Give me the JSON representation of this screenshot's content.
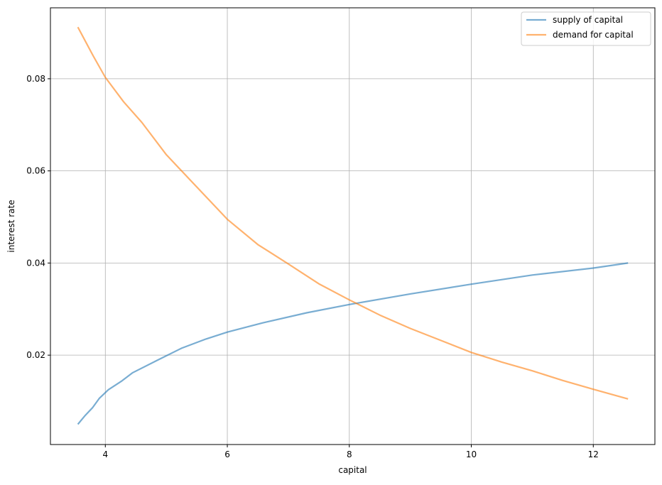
{
  "chart_data": {
    "type": "line",
    "title": "",
    "xlabel": "capital",
    "ylabel": "interest rate",
    "xlim": [
      3.1,
      13.01
    ],
    "ylim": [
      0.0006,
      0.0954
    ],
    "xticks": [
      4,
      6,
      8,
      10,
      12
    ],
    "xtick_labels": [
      "4",
      "6",
      "8",
      "10",
      "12"
    ],
    "yticks": [
      0.02,
      0.04,
      0.06,
      0.08
    ],
    "ytick_labels": [
      "0.02",
      "0.04",
      "0.06",
      "0.08"
    ],
    "grid": true,
    "legend_position": "top-right",
    "series": [
      {
        "name": "supply of capital",
        "color": "#1f77b4",
        "x": [
          3.55,
          3.67,
          3.79,
          3.9,
          4.05,
          4.26,
          4.45,
          4.84,
          5.25,
          5.65,
          6.0,
          6.58,
          7.3,
          8.0,
          9.0,
          10.0,
          11.0,
          12.0,
          12.57
        ],
        "y": [
          0.005,
          0.0069,
          0.0086,
          0.0106,
          0.0125,
          0.0143,
          0.0162,
          0.0188,
          0.0215,
          0.0235,
          0.025,
          0.027,
          0.0292,
          0.031,
          0.0333,
          0.0354,
          0.0374,
          0.0389,
          0.04
        ]
      },
      {
        "name": "demand for capital",
        "color": "#ff7f0e",
        "x": [
          3.55,
          3.8,
          4.0,
          4.3,
          4.6,
          5.0,
          5.5,
          6.0,
          6.5,
          7.0,
          7.5,
          8.0,
          8.5,
          9.0,
          9.5,
          10.0,
          10.5,
          11.0,
          11.5,
          12.0,
          12.57
        ],
        "y": [
          0.0912,
          0.085,
          0.0803,
          0.075,
          0.0705,
          0.0635,
          0.0565,
          0.0495,
          0.044,
          0.0398,
          0.0355,
          0.032,
          0.0287,
          0.0258,
          0.0232,
          0.0206,
          0.0185,
          0.0166,
          0.0145,
          0.0126,
          0.0105
        ]
      }
    ]
  }
}
